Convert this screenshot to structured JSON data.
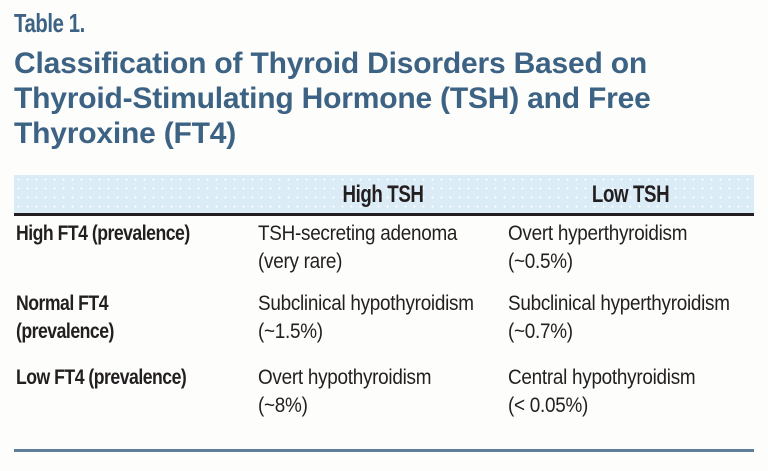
{
  "heading": {
    "table_label": "Table 1.",
    "title_full": "Classification of Thyroid Disorders Based on Thyroid-Stimulating Hormone (TSH) and Free Thyroxine (FT4)",
    "title_lines": [
      "Classification of Thyroid Disorders Based on",
      "Thyroid-Stimulating Hormone (TSH) and Free",
      "Thyroxine (FT4)"
    ]
  },
  "colors": {
    "title_blue": "#3c6284",
    "header_band_bg": "#dcecf7",
    "header_rule_black": "#231f20",
    "bottom_rule_blue": "#5f7e9a",
    "body_text": "#231f20"
  },
  "table": {
    "column_headers": [
      "",
      "High TSH",
      "Low TSH"
    ],
    "rows": [
      {
        "row_header_lines": [
          "High FT4 (prevalence)",
          ""
        ],
        "high_tsh_lines": [
          "TSH-secreting adenoma",
          "(very rare)"
        ],
        "low_tsh_lines": [
          "Overt hyperthyroidism",
          "(~0.5%)"
        ]
      },
      {
        "row_header_lines": [
          "Normal FT4",
          "(prevalence)"
        ],
        "high_tsh_lines": [
          "Subclinical hypothyroidism",
          "(~1.5%)"
        ],
        "low_tsh_lines": [
          "Subclinical hyperthyroidism",
          "(~0.7%)"
        ]
      },
      {
        "row_header_lines": [
          "Low FT4 (prevalence)",
          ""
        ],
        "high_tsh_lines": [
          "Overt hypothyroidism",
          "(~8%)"
        ],
        "low_tsh_lines": [
          "Central hypothyroidism",
          "(< 0.05%)"
        ]
      }
    ]
  }
}
